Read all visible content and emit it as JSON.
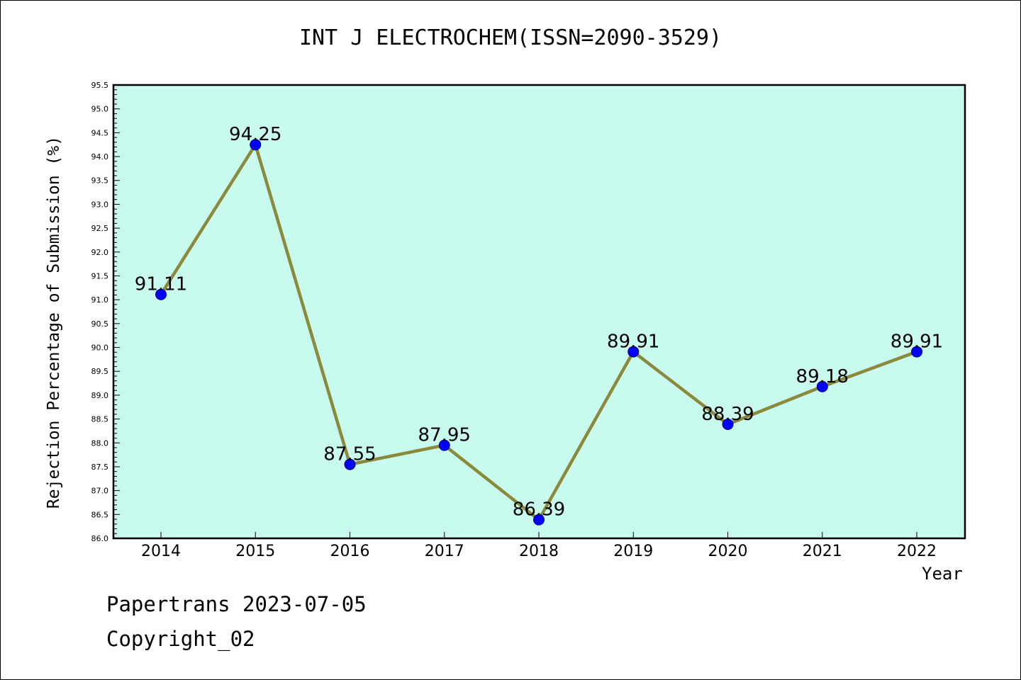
{
  "chart_data": {
    "type": "line",
    "title": "INT J ELECTROCHEM(ISSN=2090-3529)",
    "xlabel": "Year",
    "ylabel": "Rejection Percentage of Submission (%)",
    "categories": [
      "2014",
      "2015",
      "2016",
      "2017",
      "2018",
      "2019",
      "2020",
      "2021",
      "2022"
    ],
    "values": [
      91.11,
      94.25,
      87.55,
      87.95,
      86.39,
      89.91,
      88.39,
      89.18,
      89.91
    ],
    "data_labels": [
      "91.11",
      "94.25",
      "87.55",
      "87.95",
      "86.39",
      "89.91",
      "88.39",
      "89.18",
      "89.91"
    ],
    "ylim": [
      86.0,
      95.5
    ],
    "y_major_ticks": [
      "86.0",
      "86.5",
      "87.0",
      "87.5",
      "88.0",
      "88.5",
      "89.0",
      "89.5",
      "90.0",
      "90.5",
      "91.0",
      "91.5",
      "92.0",
      "92.5",
      "93.0",
      "93.5",
      "94.0",
      "94.5",
      "95.0",
      "95.5"
    ],
    "grid": false,
    "legend": "none",
    "colors": {
      "plot_background": "#c8fbee",
      "line": "#8b8a3c",
      "marker": "#0000ff",
      "marker_edge": "#000080"
    }
  },
  "footer": {
    "line1": "Papertrans 2023-07-05",
    "line2": "Copyright_02"
  }
}
